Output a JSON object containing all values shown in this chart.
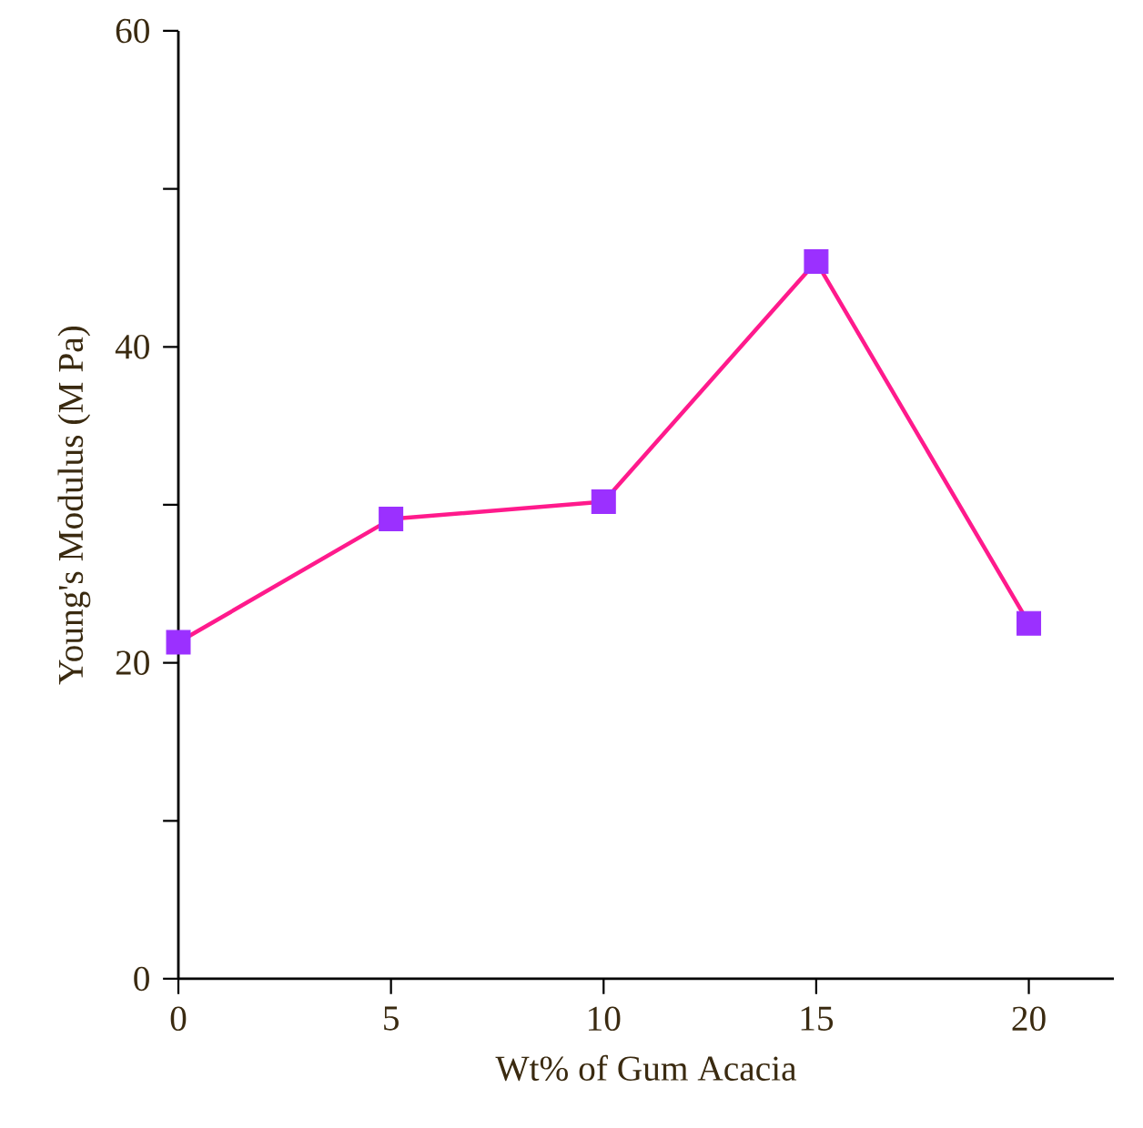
{
  "chart_data": {
    "type": "line",
    "xlabel": "Wt% of Gum Acacia",
    "ylabel": "Young's Modulus (M Pa)",
    "x": [
      0,
      5,
      10,
      15,
      20
    ],
    "series": [
      {
        "color": "#ff1a8c",
        "colors": [
          "#9b30ff",
          "#9b30ff",
          "#9b30ff",
          "#9b30ff",
          "#9b30ff"
        ],
        "values": [
          21.3,
          29.1,
          30.2,
          45.4,
          22.5
        ]
      }
    ],
    "xlim": [
      0,
      22
    ],
    "ylim": [
      0,
      60
    ],
    "xticks": [
      0,
      5,
      10,
      15,
      20
    ],
    "yticks": [
      0,
      {
        "value": 10,
        "label": null
      },
      20,
      {
        "value": 30,
        "label": null
      },
      40,
      {
        "value": 50,
        "label": null
      },
      60
    ],
    "marker": "square",
    "line_style": "solid"
  }
}
